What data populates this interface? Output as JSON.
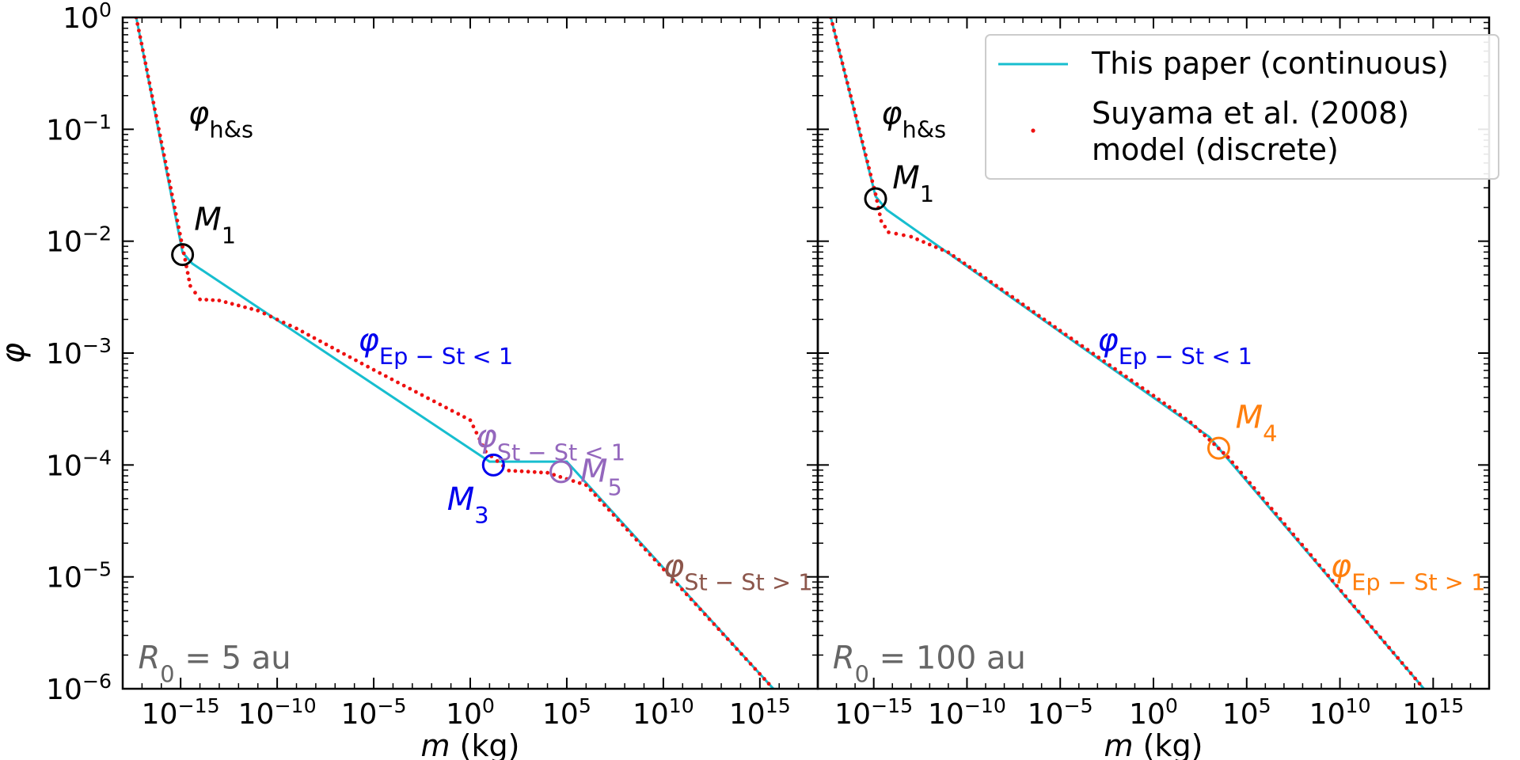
{
  "chart_data": [
    {
      "type": "line",
      "panel": "left",
      "xlabel_var": "m",
      "xlabel_unit": "(kg)",
      "ylabel": "φ",
      "xscale": "log",
      "yscale": "log",
      "xlim_log10": [
        -18,
        18
      ],
      "ylim_log10": [
        -6,
        0
      ],
      "x_ticks": [
        {
          "base": "10",
          "exp": "−15",
          "log10": -15
        },
        {
          "base": "10",
          "exp": "−10",
          "log10": -10
        },
        {
          "base": "10",
          "exp": "−5",
          "log10": -5
        },
        {
          "base": "10",
          "exp": "0",
          "log10": 0
        },
        {
          "base": "10",
          "exp": "5",
          "log10": 5
        },
        {
          "base": "10",
          "exp": "10",
          "log10": 10
        },
        {
          "base": "10",
          "exp": "15",
          "log10": 15
        }
      ],
      "y_ticks": [
        {
          "base": "10",
          "exp": "0",
          "log10": 0
        },
        {
          "base": "10",
          "exp": "−1",
          "log10": -1
        },
        {
          "base": "10",
          "exp": "−2",
          "log10": -2
        },
        {
          "base": "10",
          "exp": "−3",
          "log10": -3
        },
        {
          "base": "10",
          "exp": "−4",
          "log10": -4
        },
        {
          "base": "10",
          "exp": "−5",
          "log10": -5
        },
        {
          "base": "10",
          "exp": "−6",
          "log10": -6
        }
      ],
      "series": [
        {
          "name": "This paper (continuous)",
          "color": "#17becf",
          "style": "line",
          "points_log10": [
            [
              -17.3,
              0
            ],
            [
              -14.9,
              -2.1
            ],
            [
              -14.4,
              -2.2
            ],
            [
              1.0,
              -3.97
            ],
            [
              5.0,
              -3.97
            ],
            [
              15.7,
              -6.0
            ]
          ]
        },
        {
          "name": "Suyama et al. (2008) model (discrete)",
          "color": "#ee1111",
          "style": "dots",
          "points_log10": [
            [
              -17.3,
              0
            ],
            [
              -14.9,
              -2.05
            ],
            [
              -14.5,
              -2.4
            ],
            [
              -14.0,
              -2.52
            ],
            [
              -13.0,
              -2.53
            ],
            [
              -11.0,
              -2.62
            ],
            [
              -9.0,
              -2.78
            ],
            [
              -5.0,
              -3.15
            ],
            [
              0.0,
              -3.6
            ],
            [
              0.8,
              -3.88
            ],
            [
              2.0,
              -4.05
            ],
            [
              4.0,
              -4.07
            ],
            [
              6.0,
              -4.18
            ],
            [
              15.7,
              -6.0
            ]
          ]
        }
      ],
      "annotations": [
        {
          "id": "phi-hs",
          "main": "φ",
          "sub": "h&s",
          "color": "#000000",
          "log10": [
            -14.6,
            -0.95
          ]
        },
        {
          "id": "m1",
          "main": "M",
          "sub": "1",
          "color": "#000000",
          "log10": [
            -14.3,
            -1.9
          ]
        },
        {
          "id": "phi-ep-st-lt1",
          "main": "φ",
          "sub": "Ep − St < 1",
          "color": "#0000ee",
          "log10": [
            -5.8,
            -2.98
          ]
        },
        {
          "id": "phi-st-st-lt1",
          "main": "φ",
          "sub": "St − St < 1",
          "color": "#9467bd",
          "log10": [
            0.3,
            -3.84
          ]
        },
        {
          "id": "m3",
          "main": "M",
          "sub": "3",
          "color": "#0000ee",
          "log10": [
            -1.2,
            -4.4
          ]
        },
        {
          "id": "m5",
          "main": "M",
          "sub": "5",
          "color": "#9467bd",
          "log10": [
            5.7,
            -4.15
          ]
        },
        {
          "id": "phi-st-st-gt1",
          "main": "φ",
          "sub": "St − St > 1",
          "color": "#8c564b",
          "log10": [
            10.0,
            -5.0
          ]
        },
        {
          "id": "r0",
          "main": "R",
          "sub": "0",
          "text": " = 5 au",
          "color": "#666666",
          "log10": [
            -17.2,
            -5.82
          ]
        }
      ],
      "markers": [
        {
          "label": "M1",
          "color": "#000000",
          "log10": [
            -14.9,
            -2.12
          ]
        },
        {
          "label": "M3",
          "color": "#0000ee",
          "log10": [
            1.2,
            -4.0
          ]
        },
        {
          "label": "M5",
          "color": "#9467bd",
          "log10": [
            4.7,
            -4.06
          ]
        }
      ]
    },
    {
      "type": "line",
      "panel": "right",
      "xlabel_var": "m",
      "xlabel_unit": "(kg)",
      "ylabel": "",
      "xscale": "log",
      "yscale": "log",
      "xlim_log10": [
        -18,
        18
      ],
      "ylim_log10": [
        -6,
        0
      ],
      "x_ticks": [
        {
          "base": "10",
          "exp": "−15",
          "log10": -15
        },
        {
          "base": "10",
          "exp": "−10",
          "log10": -10
        },
        {
          "base": "10",
          "exp": "−5",
          "log10": -5
        },
        {
          "base": "10",
          "exp": "0",
          "log10": 0
        },
        {
          "base": "10",
          "exp": "5",
          "log10": 5
        },
        {
          "base": "10",
          "exp": "10",
          "log10": 10
        },
        {
          "base": "10",
          "exp": "15",
          "log10": 15
        }
      ],
      "y_ticks": [],
      "legend": {
        "position": "top-right",
        "entries": [
          {
            "lines": [
              "This paper (continuous)"
            ],
            "color": "#17becf",
            "style": "line"
          },
          {
            "lines": [
              "Suyama et al. (2008)",
              "model (discrete)"
            ],
            "color": "#ee1111",
            "style": "dot"
          }
        ]
      },
      "series": [
        {
          "name": "This paper (continuous)",
          "color": "#17becf",
          "style": "line",
          "points_log10": [
            [
              -17.3,
              0
            ],
            [
              -14.9,
              -1.6
            ],
            [
              -14.3,
              -1.72
            ],
            [
              3.0,
              -3.75
            ],
            [
              3.6,
              -3.87
            ],
            [
              14.5,
              -6.0
            ]
          ]
        },
        {
          "name": "Suyama et al. (2008) model (discrete)",
          "color": "#ee1111",
          "style": "dots",
          "points_log10": [
            [
              -17.3,
              0
            ],
            [
              -14.9,
              -1.58
            ],
            [
              -14.6,
              -1.82
            ],
            [
              -14.2,
              -1.92
            ],
            [
              -13.0,
              -1.96
            ],
            [
              -11.0,
              -2.1
            ],
            [
              -9.0,
              -2.33
            ],
            [
              -5.0,
              -2.8
            ],
            [
              0.0,
              -3.38
            ],
            [
              2.0,
              -3.62
            ],
            [
              4.0,
              -3.93
            ],
            [
              14.5,
              -6.0
            ]
          ]
        }
      ],
      "annotations": [
        {
          "id": "phi-hs",
          "main": "φ",
          "sub": "h&s",
          "color": "#000000",
          "log10": [
            -14.6,
            -0.95
          ]
        },
        {
          "id": "m1",
          "main": "M",
          "sub": "1",
          "color": "#000000",
          "log10": [
            -14.0,
            -1.53
          ]
        },
        {
          "id": "phi-ep-st-lt1",
          "main": "φ",
          "sub": "Ep − St < 1",
          "color": "#0000ee",
          "log10": [
            -3.0,
            -2.98
          ]
        },
        {
          "id": "m4",
          "main": "M",
          "sub": "4",
          "color": "#ff7f0e",
          "log10": [
            4.4,
            -3.67
          ]
        },
        {
          "id": "phi-ep-st-gt1",
          "main": "φ",
          "sub": "Ep − St > 1",
          "color": "#ff7f0e",
          "log10": [
            9.5,
            -5.0
          ]
        },
        {
          "id": "r0",
          "main": "R",
          "sub": "0",
          "text": " = 100 au",
          "color": "#666666",
          "log10": [
            -17.2,
            -5.82
          ]
        }
      ],
      "markers": [
        {
          "label": "M1",
          "color": "#000000",
          "log10": [
            -14.9,
            -1.62
          ]
        },
        {
          "label": "M4",
          "color": "#ff7f0e",
          "log10": [
            3.5,
            -3.85
          ]
        }
      ]
    }
  ]
}
